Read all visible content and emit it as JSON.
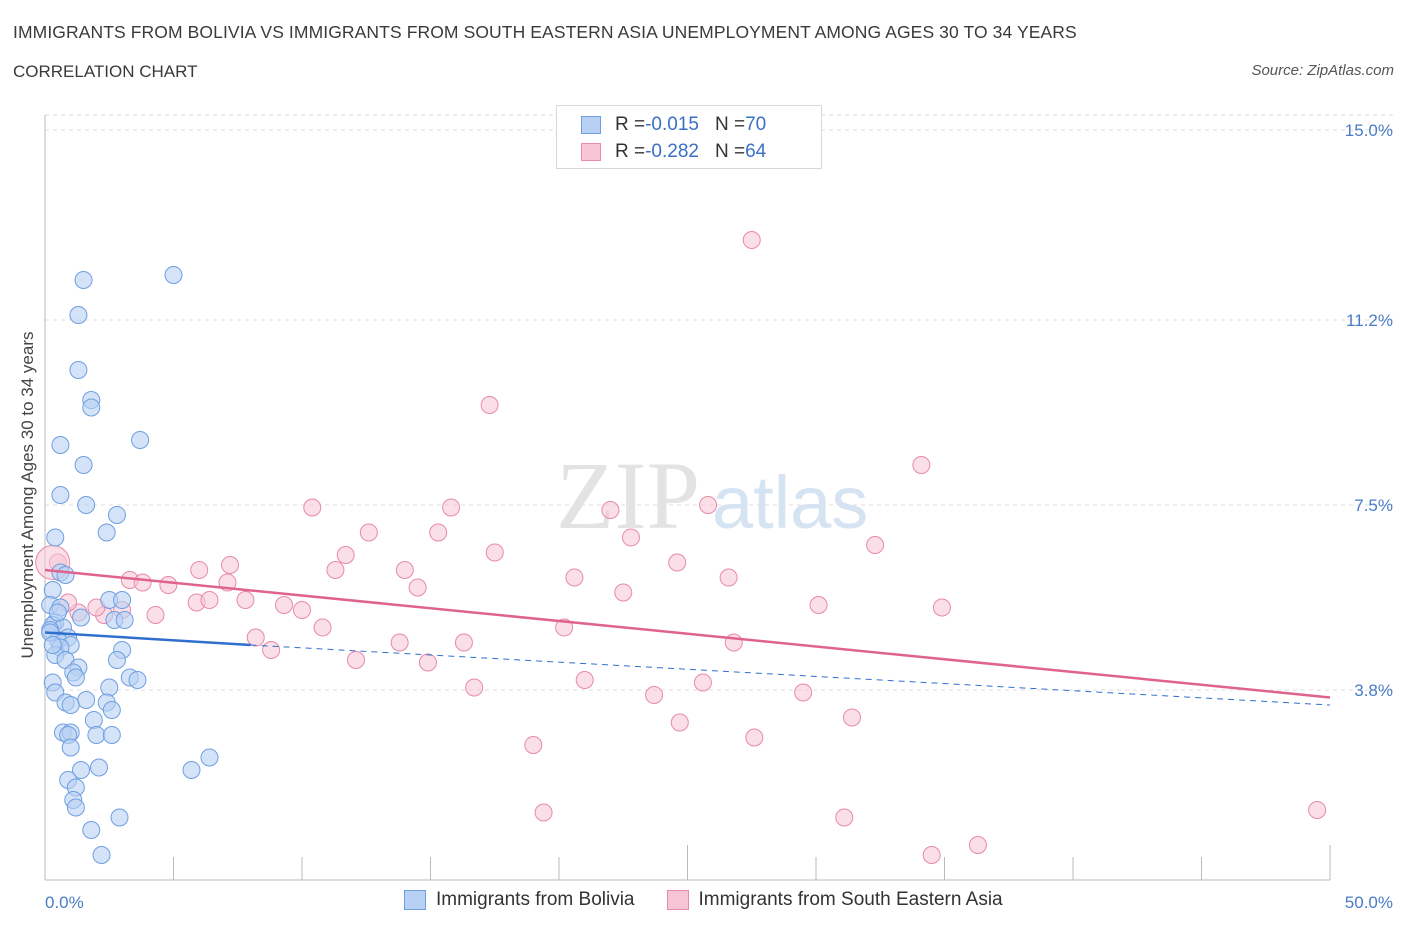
{
  "title": "IMMIGRANTS FROM BOLIVIA VS IMMIGRANTS FROM SOUTH EASTERN ASIA UNEMPLOYMENT AMONG AGES 30 TO 34 YEARS",
  "subtitle": "CORRELATION CHART",
  "source": "Source: ZipAtlas.com",
  "watermark": {
    "zip": "ZIP",
    "atlas": "atlas"
  },
  "colors": {
    "bolivia_fill": "#b8d0f3",
    "bolivia_stroke": "#6f9fe0",
    "bolivia_line": "#2f6fce",
    "sea_fill": "#f7c5d5",
    "sea_stroke": "#e88aa8",
    "sea_line": "#e0638e",
    "tick_text": "#4a7cc7",
    "grid": "#dcdcdc"
  },
  "legend": {
    "rows": [
      {
        "r_label": "R = ",
        "r_value": "-0.015",
        "n_label": "N = ",
        "n_value": "70"
      },
      {
        "r_label": "R = ",
        "r_value": "-0.282",
        "n_label": "N = ",
        "n_value": "64"
      }
    ]
  },
  "bottom_legend": {
    "series1": "Immigrants from Bolivia",
    "series2": "Immigrants from South Eastern Asia"
  },
  "chart_data": {
    "type": "scatter",
    "title": "IMMIGRANTS FROM BOLIVIA VS IMMIGRANTS FROM SOUTH EASTERN ASIA UNEMPLOYMENT AMONG AGES 30 TO 34 YEARS",
    "xlabel": "",
    "ylabel": "Unemployment Among Ages 30 to 34 years",
    "xlim": [
      0,
      50
    ],
    "ylim": [
      0,
      15.3
    ],
    "x_tick_labels": [
      "0.0%",
      "50.0%"
    ],
    "y_ticks": [
      3.8,
      7.5,
      11.2,
      15.0
    ],
    "y_tick_labels": [
      "3.8%",
      "7.5%",
      "11.2%",
      "15.0%"
    ],
    "grid": true,
    "series": [
      {
        "name": "Immigrants from Bolivia",
        "R": -0.015,
        "N": 70,
        "trend": {
          "x": [
            0,
            8
          ],
          "y": [
            4.95,
            4.7
          ],
          "dashed_extension": {
            "x": [
              8,
              50
            ],
            "y": [
              4.7,
              3.5
            ]
          }
        },
        "points": [
          [
            1.5,
            12.0
          ],
          [
            5.0,
            12.1
          ],
          [
            1.3,
            11.3
          ],
          [
            1.3,
            10.2
          ],
          [
            1.8,
            9.6
          ],
          [
            1.8,
            9.45
          ],
          [
            0.6,
            8.7
          ],
          [
            3.7,
            8.8
          ],
          [
            1.5,
            8.3
          ],
          [
            0.6,
            7.7
          ],
          [
            1.6,
            7.5
          ],
          [
            2.8,
            7.3
          ],
          [
            2.4,
            6.95
          ],
          [
            0.4,
            6.85
          ],
          [
            0.6,
            6.15
          ],
          [
            0.8,
            6.1
          ],
          [
            0.3,
            5.8
          ],
          [
            2.5,
            5.6
          ],
          [
            3.0,
            5.6
          ],
          [
            0.2,
            5.5
          ],
          [
            0.6,
            5.45
          ],
          [
            2.7,
            5.2
          ],
          [
            3.1,
            5.2
          ],
          [
            0.4,
            5.15
          ],
          [
            0.3,
            5.1
          ],
          [
            0.7,
            5.05
          ],
          [
            0.2,
            5.0
          ],
          [
            0.9,
            4.85
          ],
          [
            0.5,
            4.8
          ],
          [
            1.0,
            4.7
          ],
          [
            0.6,
            4.65
          ],
          [
            3.0,
            4.6
          ],
          [
            0.4,
            4.5
          ],
          [
            0.8,
            4.4
          ],
          [
            2.8,
            4.4
          ],
          [
            1.3,
            4.25
          ],
          [
            1.1,
            4.15
          ],
          [
            1.2,
            4.05
          ],
          [
            3.3,
            4.05
          ],
          [
            0.3,
            3.95
          ],
          [
            3.6,
            4.0
          ],
          [
            0.4,
            3.75
          ],
          [
            2.5,
            3.85
          ],
          [
            1.6,
            3.6
          ],
          [
            0.8,
            3.55
          ],
          [
            1.0,
            3.5
          ],
          [
            2.4,
            3.55
          ],
          [
            2.6,
            3.4
          ],
          [
            1.9,
            3.2
          ],
          [
            0.7,
            2.95
          ],
          [
            1.0,
            2.95
          ],
          [
            2.0,
            2.9
          ],
          [
            2.6,
            2.9
          ],
          [
            0.9,
            2.9
          ],
          [
            1.0,
            2.65
          ],
          [
            6.4,
            2.45
          ],
          [
            2.1,
            2.25
          ],
          [
            1.4,
            2.2
          ],
          [
            5.7,
            2.2
          ],
          [
            0.9,
            2.0
          ],
          [
            1.2,
            1.85
          ],
          [
            1.1,
            1.6
          ],
          [
            1.2,
            1.45
          ],
          [
            2.9,
            1.25
          ],
          [
            1.8,
            1.0
          ],
          [
            2.2,
            0.5
          ],
          [
            0.2,
            4.95
          ],
          [
            0.5,
            5.35
          ],
          [
            0.3,
            4.7
          ],
          [
            1.4,
            5.25
          ]
        ]
      },
      {
        "name": "Immigrants from South Eastern Asia",
        "R": -0.282,
        "N": 64,
        "trend": {
          "x": [
            0,
            50
          ],
          "y": [
            6.2,
            3.65
          ]
        },
        "points": [
          [
            27.5,
            12.8
          ],
          [
            17.3,
            9.5
          ],
          [
            34.1,
            8.3
          ],
          [
            10.4,
            7.45
          ],
          [
            15.8,
            7.45
          ],
          [
            22.0,
            7.4
          ],
          [
            25.8,
            7.5
          ],
          [
            12.6,
            6.95
          ],
          [
            15.3,
            6.95
          ],
          [
            22.8,
            6.85
          ],
          [
            32.3,
            6.7
          ],
          [
            11.7,
            6.5
          ],
          [
            17.5,
            6.55
          ],
          [
            11.3,
            6.2
          ],
          [
            14.0,
            6.2
          ],
          [
            24.6,
            6.35
          ],
          [
            7.2,
            6.3
          ],
          [
            6.0,
            6.2
          ],
          [
            20.6,
            6.05
          ],
          [
            26.6,
            6.05
          ],
          [
            3.3,
            6.0
          ],
          [
            3.8,
            5.95
          ],
          [
            7.1,
            5.95
          ],
          [
            14.5,
            5.85
          ],
          [
            4.8,
            5.9
          ],
          [
            5.9,
            5.55
          ],
          [
            6.4,
            5.6
          ],
          [
            7.8,
            5.6
          ],
          [
            9.3,
            5.5
          ],
          [
            10.0,
            5.4
          ],
          [
            22.5,
            5.75
          ],
          [
            30.1,
            5.5
          ],
          [
            34.9,
            5.45
          ],
          [
            4.3,
            5.3
          ],
          [
            1.3,
            5.35
          ],
          [
            2.3,
            5.3
          ],
          [
            2.0,
            5.45
          ],
          [
            3.0,
            5.4
          ],
          [
            0.5,
            6.35
          ],
          [
            0.9,
            5.55
          ],
          [
            10.8,
            5.05
          ],
          [
            20.2,
            5.05
          ],
          [
            8.2,
            4.85
          ],
          [
            13.8,
            4.75
          ],
          [
            16.3,
            4.75
          ],
          [
            26.8,
            4.75
          ],
          [
            8.8,
            4.6
          ],
          [
            12.1,
            4.4
          ],
          [
            14.9,
            4.35
          ],
          [
            21.0,
            4.0
          ],
          [
            25.6,
            3.95
          ],
          [
            16.7,
            3.85
          ],
          [
            29.5,
            3.75
          ],
          [
            23.7,
            3.7
          ],
          [
            31.4,
            3.25
          ],
          [
            24.7,
            3.15
          ],
          [
            27.6,
            2.85
          ],
          [
            19.0,
            2.7
          ],
          [
            19.4,
            1.35
          ],
          [
            31.1,
            1.25
          ],
          [
            49.5,
            1.4
          ],
          [
            34.5,
            0.5
          ],
          [
            36.3,
            0.7
          ],
          [
            0.3,
            6.35
          ]
        ]
      }
    ]
  }
}
